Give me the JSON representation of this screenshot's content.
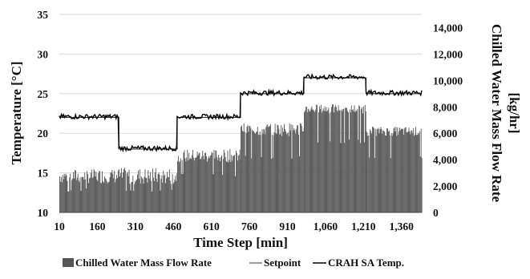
{
  "chart_data": {
    "type": "bar+line",
    "xlabel": "Time Step [min]",
    "ylabel": "Temperature [°C]",
    "y2label_line1": "Chilled Water Mass Flow Rate",
    "y2label_line2": "[kg/hr]",
    "x_range": [
      10,
      1440
    ],
    "ylim": [
      10,
      35
    ],
    "y2lim": [
      0,
      15000
    ],
    "x_ticks": [
      10,
      160,
      310,
      460,
      610,
      760,
      910,
      1060,
      1210,
      1360
    ],
    "x_tick_labels": [
      "10",
      "160",
      "310",
      "460",
      "610",
      "760",
      "910",
      "1,060",
      "1,210",
      "1,360"
    ],
    "y_ticks": [
      10,
      15,
      20,
      25,
      30,
      35
    ],
    "y_tick_labels": [
      "10",
      "15",
      "20",
      "25",
      "30",
      "35"
    ],
    "y2_ticks": [
      0,
      2000,
      4000,
      6000,
      8000,
      10000,
      12000,
      14000
    ],
    "y2_tick_labels": [
      "0",
      "2,000",
      "4,000",
      "6,000",
      "8,000",
      "10,000",
      "12,000",
      "14,000"
    ],
    "grid": "horizontal",
    "legend_position": "bottom",
    "series": [
      {
        "name": "Chilled Water Mass Flow Rate",
        "kind": "bar",
        "axis": "right",
        "color": "#555555",
        "segments": [
          {
            "x_start": 10,
            "x_end": 245,
            "low": 2200,
            "high": 3300
          },
          {
            "x_start": 245,
            "x_end": 475,
            "low": 2100,
            "high": 3400
          },
          {
            "x_start": 475,
            "x_end": 725,
            "low": 3800,
            "high": 4800
          },
          {
            "x_start": 725,
            "x_end": 975,
            "low": 5800,
            "high": 6800
          },
          {
            "x_start": 975,
            "x_end": 1220,
            "low": 7500,
            "high": 8200
          },
          {
            "x_start": 1220,
            "x_end": 1440,
            "low": 5800,
            "high": 6500
          }
        ]
      },
      {
        "name": "Setpoint",
        "kind": "line",
        "axis": "left",
        "color": "#333333",
        "steps": [
          {
            "x_start": 10,
            "x_end": 245,
            "y": 22
          },
          {
            "x_start": 245,
            "x_end": 475,
            "y": 18
          },
          {
            "x_start": 475,
            "x_end": 725,
            "y": 22
          },
          {
            "x_start": 725,
            "x_end": 975,
            "y": 25
          },
          {
            "x_start": 975,
            "x_end": 1220,
            "y": 27
          },
          {
            "x_start": 1220,
            "x_end": 1440,
            "y": 25
          }
        ]
      },
      {
        "name": "CRAH SA Temp.",
        "kind": "line",
        "axis": "left",
        "color": "#000000",
        "steps": [
          {
            "x_start": 10,
            "x_end": 245,
            "y": 22.1
          },
          {
            "x_start": 245,
            "x_end": 475,
            "y": 18.1
          },
          {
            "x_start": 475,
            "x_end": 725,
            "y": 22.1
          },
          {
            "x_start": 725,
            "x_end": 975,
            "y": 25.1
          },
          {
            "x_start": 975,
            "x_end": 1220,
            "y": 27.1
          },
          {
            "x_start": 1220,
            "x_end": 1440,
            "y": 25.1
          }
        ],
        "noise_amplitude": 0.3
      }
    ],
    "legend": [
      {
        "label": "Chilled Water Mass Flow Rate",
        "symbol": "bar",
        "color": "#555555"
      },
      {
        "label": "Setpoint",
        "symbol": "line",
        "color": "#555555"
      },
      {
        "label": "CRAH SA Temp.",
        "symbol": "line",
        "color": "#000000"
      }
    ]
  }
}
